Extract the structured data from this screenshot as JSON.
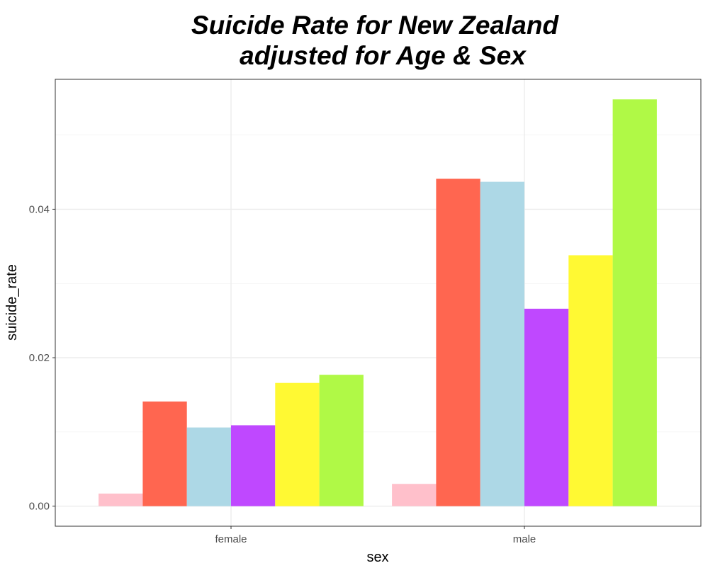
{
  "chart_data": {
    "type": "bar",
    "title": "Suicide Rate for New Zealand\nadjusted for Age & Sex",
    "title_lines": [
      "Suicide Rate for New Zealand",
      "adjusted for Age & Sex"
    ],
    "xlabel": "sex",
    "ylabel": "suicide_rate",
    "categories": [
      "female",
      "male"
    ],
    "series": [
      {
        "color": "#FFC0CB",
        "values": [
          0.0017,
          0.003
        ]
      },
      {
        "color": "#FF6650",
        "values": [
          0.0141,
          0.0441
        ]
      },
      {
        "color": "#ADD8E6",
        "values": [
          0.0106,
          0.0437
        ]
      },
      {
        "color": "#BF48FF",
        "values": [
          0.0109,
          0.0266
        ]
      },
      {
        "color": "#FFF933",
        "values": [
          0.0166,
          0.0338
        ]
      },
      {
        "color": "#B0F946",
        "values": [
          0.0177,
          0.0548
        ]
      }
    ],
    "yticks": [
      0.0,
      0.02,
      0.04
    ],
    "ytick_labels": [
      "0.00",
      "0.02",
      "0.04"
    ],
    "ylim": [
      -0.0027,
      0.0575
    ],
    "grid": true,
    "legend": "none"
  }
}
